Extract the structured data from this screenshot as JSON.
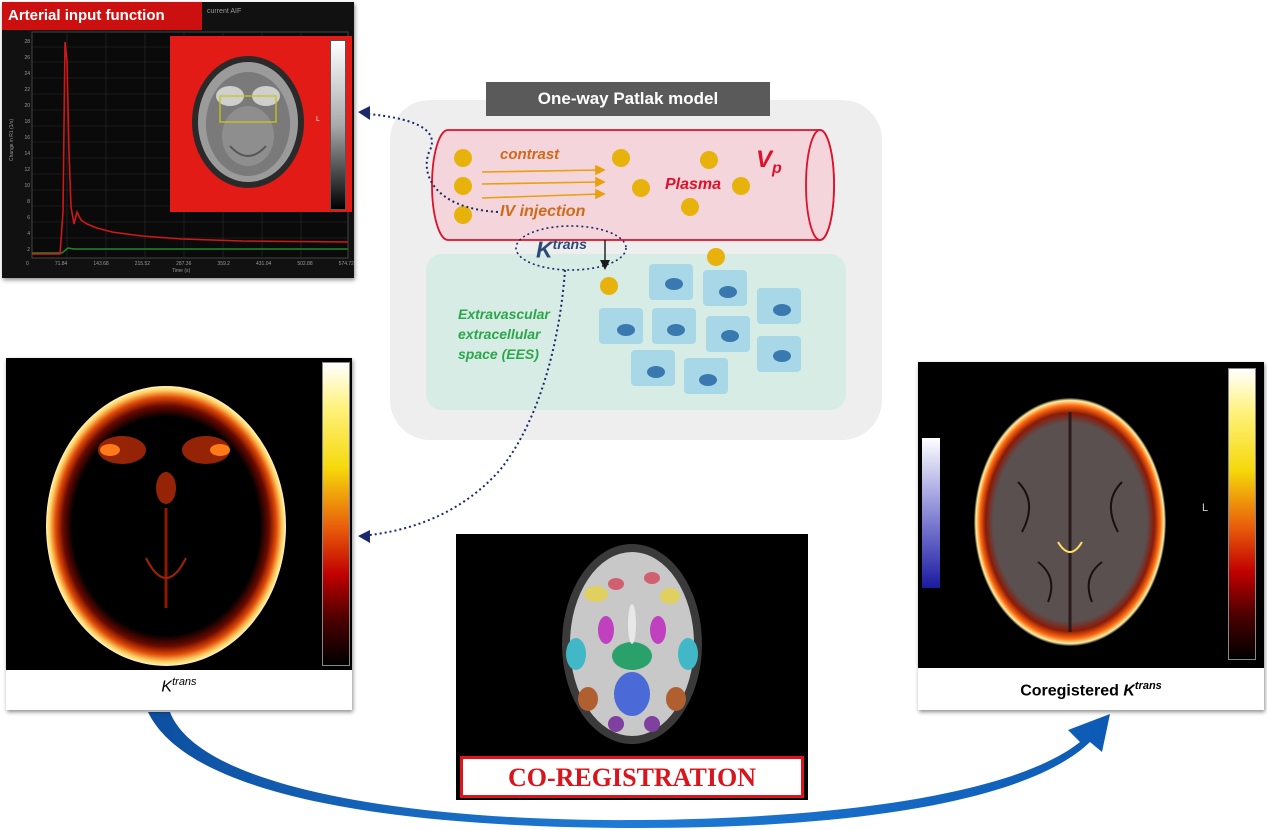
{
  "aif_panel": {
    "title": "Arterial input function",
    "window_label": "current AIF",
    "ylabel": "Change in R1 (1/s)",
    "xlabel": "Time (s)",
    "yticks": [
      "28",
      "26",
      "24",
      "22",
      "20",
      "18",
      "16",
      "14",
      "12",
      "10",
      "8",
      "6",
      "4",
      "2",
      "0"
    ],
    "xticks": [
      "0",
      "71.84",
      "143.68",
      "215.52",
      "287.36",
      "359.2",
      "431.04",
      "502.88",
      "574.72"
    ],
    "inset_side_label": "L"
  },
  "patlak": {
    "title": "One-way Patlak model",
    "contrast_label": "contrast",
    "plasma_label": "Plasma",
    "vp_main": "V",
    "vp_sub": "p",
    "iv_label": "IV injection",
    "ktrans_main": "K",
    "ktrans_sup": "trans",
    "ees_line1": "Extravascular",
    "ees_line2": "extracellular",
    "ees_line3": "space (EES)"
  },
  "ktrans_panel": {
    "caption_main": "K",
    "caption_sup": "trans"
  },
  "coreg_panel": {
    "caption_prefix": "Coregistered ",
    "caption_main": "K",
    "caption_sup": "trans",
    "side_label": "L"
  },
  "center_panel": {
    "banner": "CO-REGISTRATION"
  },
  "colors": {
    "title_bar_red": "#cc1010",
    "patlak_title_bg": "#5a5a5a",
    "patlak_bg": "#eeeeee",
    "vessel_fill": "#f5d5dc",
    "vessel_stroke": "#e0102a",
    "ees_fill": "#d6ece4",
    "cell_fill": "#a8d8e8",
    "nucleus": "#3a78b0",
    "particle": "#e8b20c",
    "orange_text": "#d06a18",
    "ees_text": "#2aa84a",
    "ktrans_text": "#2a4a7a",
    "arrow_blue": "#1668c0",
    "dotted_navy": "#1a2a6a"
  }
}
